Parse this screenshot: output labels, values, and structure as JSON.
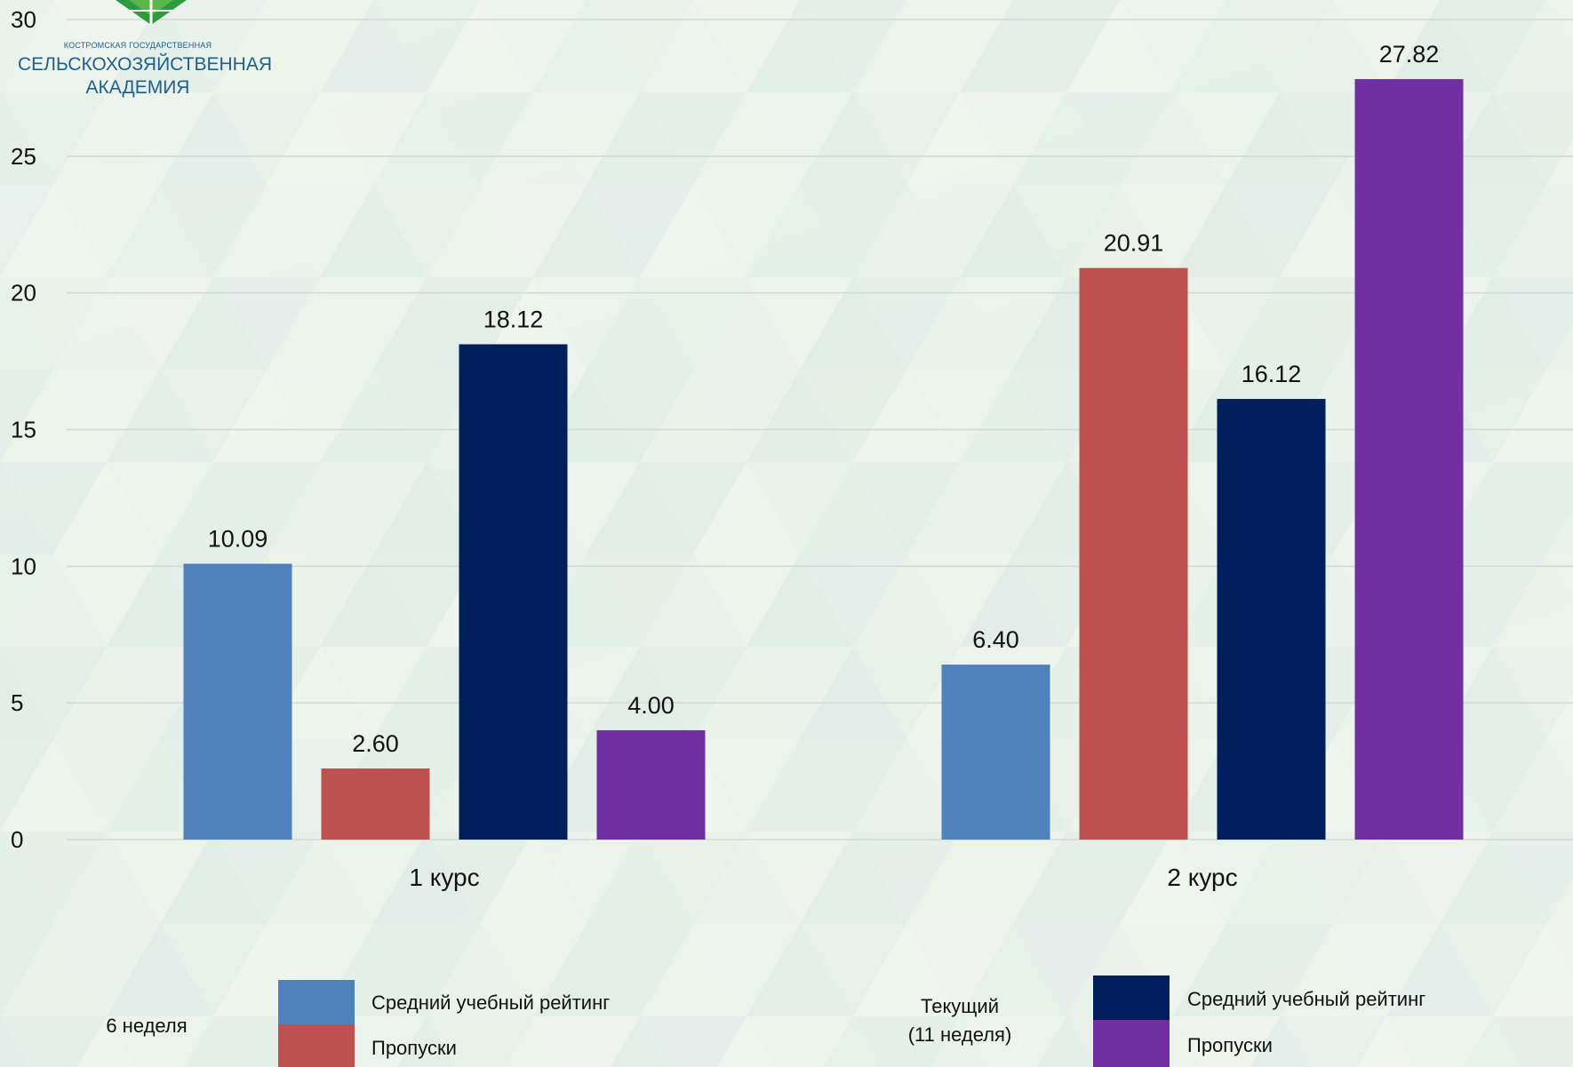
{
  "logo": {
    "line1": "КОСТРОМСКАЯ ГОСУДАРСТВЕННАЯ",
    "line2": "СЕЛЬСКОХОЗЯЙСТВЕННАЯ",
    "line3": "АКАДЕМИЯ"
  },
  "legend": {
    "group1_label": "6 неделя",
    "group2_label_line1": "Текущий",
    "group2_label_line2": "(11 неделя)",
    "items": [
      {
        "label": "Средний учебный рейтинг",
        "color": "#4f81bd"
      },
      {
        "label": "Пропуски",
        "color": "#c0504d"
      },
      {
        "label": "Средний учебный рейтинг",
        "color": "#001f5b"
      },
      {
        "label": "Пропуски",
        "color": "#7030a0"
      }
    ]
  },
  "chart_data": {
    "type": "bar",
    "categories": [
      "1 курс",
      "2 курс"
    ],
    "series": [
      {
        "values": [
          10.09,
          6.4
        ],
        "color": "#4f81bd",
        "labels": [
          "10.09",
          "6.40"
        ]
      },
      {
        "values": [
          2.6,
          20.91
        ],
        "color": "#c0504d",
        "labels": [
          "2.60",
          "20.91"
        ]
      },
      {
        "values": [
          18.12,
          16.12
        ],
        "color": "#001f5b",
        "labels": [
          "18.12",
          "16.12"
        ]
      },
      {
        "values": [
          4.0,
          27.82
        ],
        "color": "#7030a0",
        "labels": [
          "4.00",
          "27.82"
        ]
      }
    ],
    "yticks": [
      "0",
      "5",
      "10",
      "15",
      "20",
      "25",
      "30"
    ],
    "ylim": [
      0,
      30
    ],
    "grid": true
  }
}
